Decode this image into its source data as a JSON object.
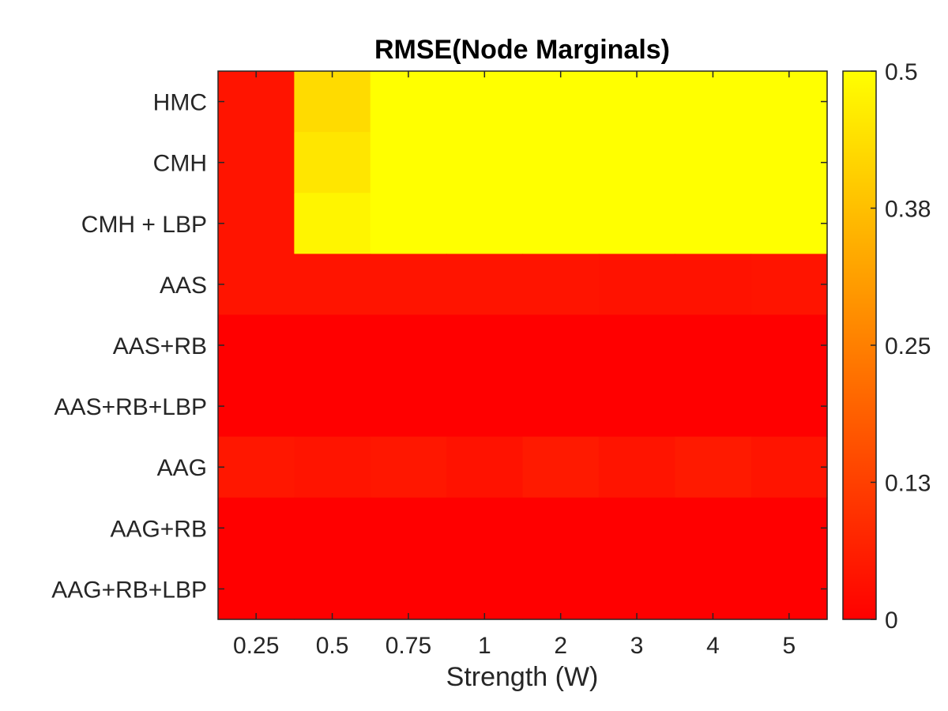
{
  "chart_data": {
    "type": "heatmap",
    "title": "RMSE(Node Marginals)",
    "xlabel": "Strength (W)",
    "ylabel": "",
    "x_categories": [
      "0.25",
      "0.5",
      "0.75",
      "1",
      "2",
      "3",
      "4",
      "5"
    ],
    "y_categories": [
      "HMC",
      "CMH",
      "CMH + LBP",
      "AAS",
      "AAS+RB",
      "AAS+RB+LBP",
      "AAG",
      "AAG+RB",
      "AAG+RB+LBP"
    ],
    "values": [
      [
        0.04,
        0.43,
        0.5,
        0.5,
        0.5,
        0.5,
        0.5,
        0.5
      ],
      [
        0.04,
        0.45,
        0.5,
        0.5,
        0.5,
        0.5,
        0.5,
        0.5
      ],
      [
        0.04,
        0.48,
        0.5,
        0.5,
        0.5,
        0.5,
        0.5,
        0.5
      ],
      [
        0.04,
        0.04,
        0.04,
        0.04,
        0.04,
        0.035,
        0.035,
        0.04
      ],
      [
        0.0,
        0.0,
        0.0,
        0.0,
        0.0,
        0.0,
        0.0,
        0.0
      ],
      [
        0.0,
        0.0,
        0.0,
        0.0,
        0.0,
        0.0,
        0.0,
        0.0
      ],
      [
        0.045,
        0.04,
        0.045,
        0.035,
        0.05,
        0.04,
        0.05,
        0.04
      ],
      [
        0.0,
        0.0,
        0.0,
        0.0,
        0.0,
        0.0,
        0.0,
        0.0
      ],
      [
        0.0,
        0.0,
        0.0,
        0.0,
        0.0,
        0.0,
        0.0,
        0.0
      ]
    ],
    "colormap": "autumn",
    "color_range": [
      0,
      0.5
    ],
    "colorbar_ticks": [
      "0",
      "0.13",
      "0.25",
      "0.38",
      "0.5"
    ],
    "colorbar_tick_values": [
      0,
      0.125,
      0.25,
      0.375,
      0.5
    ],
    "grid": false
  }
}
